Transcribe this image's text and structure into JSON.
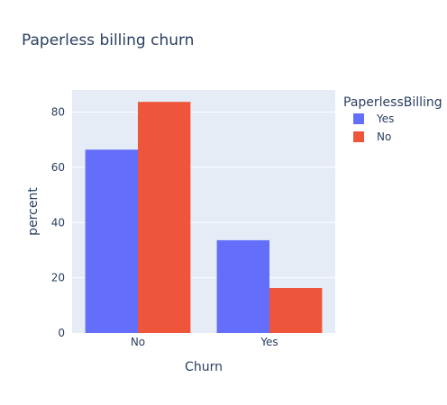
{
  "chart_data": {
    "type": "bar",
    "title": "Paperless billing churn",
    "xlabel": "Churn",
    "ylabel": "percent",
    "categories": [
      "No",
      "Yes"
    ],
    "series": [
      {
        "name": "Yes",
        "values": [
          66.4,
          33.6
        ],
        "color": "#636efa"
      },
      {
        "name": "No",
        "values": [
          83.7,
          16.3
        ],
        "color": "#ef553b"
      }
    ],
    "ylim": [
      0,
      88
    ],
    "yticks": [
      0,
      20,
      40,
      60,
      80
    ],
    "grid": true,
    "legend": {
      "title": "PaperlessBilling",
      "placement": "top-right"
    },
    "colors": {
      "plot_bg": "#e5ecf6",
      "grid": "#ffffff",
      "text": "#2a3f5f"
    }
  }
}
